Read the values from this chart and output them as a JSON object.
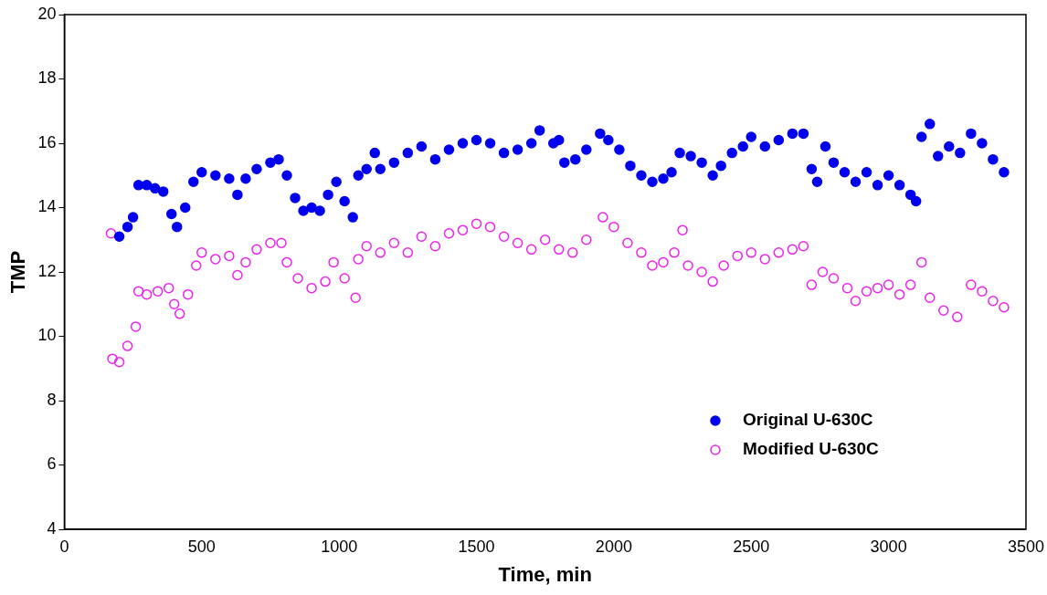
{
  "chart_data": {
    "type": "scatter",
    "xlabel": "Time, min",
    "ylabel": "TMP",
    "xlim": [
      0,
      3500
    ],
    "xticks": [
      0,
      500,
      1000,
      1500,
      2000,
      2500,
      3000,
      3500
    ],
    "ylim": [
      4,
      20
    ],
    "yticks": [
      4,
      6,
      8,
      10,
      12,
      14,
      16,
      18,
      20
    ],
    "grid": false,
    "legend": "bottom right",
    "marker": "circle",
    "series": [
      {
        "name": "Original U-630C",
        "color": "#0000ee",
        "x": [
          200,
          230,
          250,
          270,
          300,
          330,
          360,
          390,
          410,
          440,
          470,
          500,
          550,
          600,
          630,
          660,
          700,
          750,
          780,
          810,
          840,
          870,
          900,
          930,
          960,
          990,
          1020,
          1050,
          1070,
          1100,
          1130,
          1150,
          1200,
          1250,
          1300,
          1350,
          1400,
          1450,
          1500,
          1550,
          1600,
          1650,
          1700,
          1730,
          1780,
          1800,
          1820,
          1860,
          1900,
          1950,
          1980,
          2020,
          2060,
          2100,
          2140,
          2180,
          2210,
          2240,
          2280,
          2320,
          2360,
          2390,
          2430,
          2470,
          2500,
          2550,
          2600,
          2650,
          2690,
          2720,
          2740,
          2770,
          2800,
          2840,
          2880,
          2920,
          2960,
          3000,
          3040,
          3080,
          3100,
          3120,
          3150,
          3180,
          3220,
          3260,
          3300,
          3340,
          3380,
          3420
        ],
        "values": [
          13.1,
          13.4,
          13.7,
          14.7,
          14.7,
          14.6,
          14.5,
          13.8,
          13.4,
          14.0,
          14.8,
          15.1,
          15.0,
          14.9,
          14.4,
          14.9,
          15.2,
          15.4,
          15.5,
          15.0,
          14.3,
          13.9,
          14.0,
          13.9,
          14.4,
          14.8,
          14.2,
          13.7,
          15.0,
          15.2,
          15.7,
          15.2,
          15.4,
          15.7,
          15.9,
          15.5,
          15.8,
          16.0,
          16.1,
          16.0,
          15.7,
          15.8,
          16.0,
          16.4,
          16.0,
          16.1,
          15.4,
          15.5,
          15.8,
          16.3,
          16.1,
          15.8,
          15.3,
          15.0,
          14.8,
          14.9,
          15.1,
          15.7,
          15.6,
          15.4,
          15.0,
          15.3,
          15.7,
          15.9,
          16.2,
          15.9,
          16.1,
          16.3,
          16.3,
          15.2,
          14.8,
          15.9,
          15.4,
          15.1,
          14.8,
          15.1,
          14.7,
          15.0,
          14.7,
          14.4,
          14.2,
          16.2,
          16.6,
          15.6,
          15.9,
          15.7,
          16.3,
          16.0,
          15.5,
          15.1
        ]
      },
      {
        "name": "Modified U-630C",
        "color": "#ee22ee",
        "x": [
          170,
          175,
          200,
          230,
          260,
          270,
          300,
          340,
          380,
          400,
          420,
          450,
          480,
          500,
          550,
          600,
          630,
          660,
          700,
          750,
          790,
          810,
          850,
          900,
          950,
          980,
          1020,
          1060,
          1070,
          1100,
          1150,
          1200,
          1250,
          1300,
          1350,
          1400,
          1450,
          1500,
          1550,
          1600,
          1650,
          1700,
          1750,
          1800,
          1850,
          1900,
          1960,
          2000,
          2050,
          2100,
          2140,
          2180,
          2220,
          2250,
          2270,
          2320,
          2360,
          2400,
          2450,
          2500,
          2550,
          2600,
          2650,
          2690,
          2720,
          2760,
          2800,
          2850,
          2880,
          2920,
          2960,
          3000,
          3040,
          3080,
          3120,
          3150,
          3200,
          3250,
          3300,
          3340,
          3380,
          3420
        ],
        "values": [
          13.2,
          9.3,
          9.2,
          9.7,
          10.3,
          11.4,
          11.3,
          11.4,
          11.5,
          11.0,
          10.7,
          11.3,
          12.2,
          12.6,
          12.4,
          12.5,
          11.9,
          12.3,
          12.7,
          12.9,
          12.9,
          12.3,
          11.8,
          11.5,
          11.7,
          12.3,
          11.8,
          11.2,
          12.4,
          12.8,
          12.6,
          12.9,
          12.6,
          13.1,
          12.8,
          13.2,
          13.3,
          13.5,
          13.4,
          13.1,
          12.9,
          12.7,
          13.0,
          12.7,
          12.6,
          13.0,
          13.7,
          13.4,
          12.9,
          12.6,
          12.2,
          12.3,
          12.6,
          13.3,
          12.2,
          12.0,
          11.7,
          12.2,
          12.5,
          12.6,
          12.4,
          12.6,
          12.7,
          12.8,
          11.6,
          12.0,
          11.8,
          11.5,
          11.1,
          11.4,
          11.5,
          11.6,
          11.3,
          11.6,
          12.3,
          11.2,
          10.8,
          10.6,
          11.6,
          11.4,
          11.1,
          10.9
        ]
      }
    ]
  }
}
